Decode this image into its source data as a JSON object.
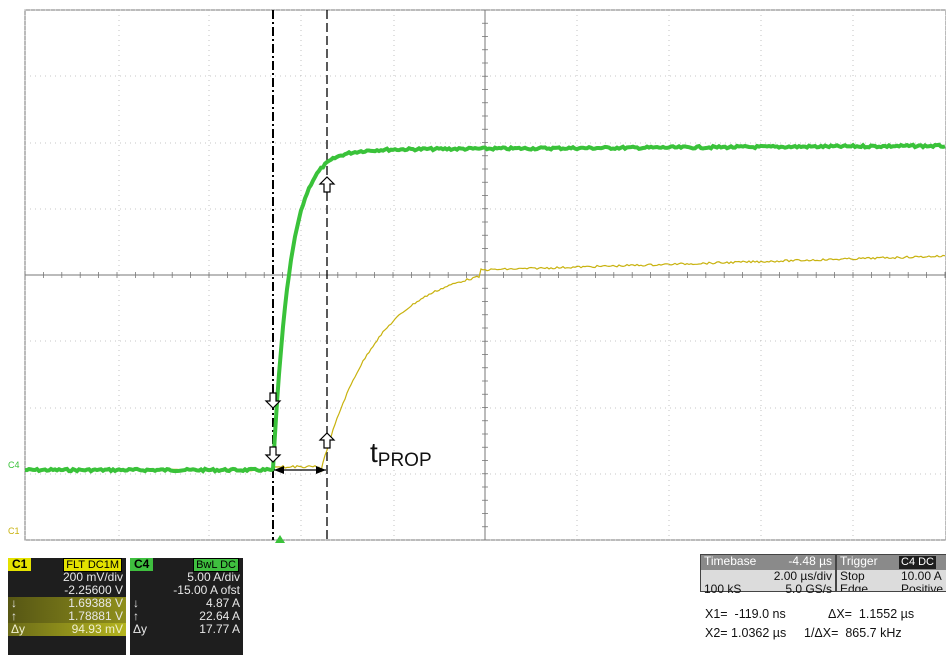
{
  "colors": {
    "ch1": "#c8b20e",
    "ch4": "#3ac23a",
    "grid": "#8a8a8a",
    "cursor": "#000000"
  },
  "annotation": {
    "label_main": "t",
    "label_sub": "PROP"
  },
  "markers": {
    "c4_left": "C4",
    "c1_left": "C1"
  },
  "ch1_panel": {
    "name": "C1",
    "badges": "FLT DC1M",
    "scale": "200 mV/div",
    "offset": "-2.25600 V",
    "cursor_down": {
      "icon": "↓",
      "value": "1.69388 V"
    },
    "cursor_up": {
      "icon": "↑",
      "value": "1.78881 V"
    },
    "delta": {
      "label": "Δy",
      "value": "94.93 mV"
    }
  },
  "ch4_panel": {
    "name": "C4",
    "badges": "BwL DC",
    "scale": "5.00 A/div",
    "offset": "-15.00 A ofst",
    "cursor_down": {
      "icon": "↓",
      "value": "4.87 A"
    },
    "cursor_up": {
      "icon": "↑",
      "value": "22.64 A"
    },
    "delta": {
      "label": "Δy",
      "value": "17.77 A"
    }
  },
  "timebase": {
    "label": "Timebase",
    "delay": "-4.48 µs",
    "per_div": "2.00 µs/div",
    "samples": "100 kS",
    "rate": "5.0 GS/s"
  },
  "trigger": {
    "label": "Trigger",
    "badge": "C4 DC",
    "mode": "Stop",
    "level": "10.00 A",
    "type": "Edge",
    "slope": "Positive"
  },
  "measurements": {
    "x1": "X1=  -119.0 ns",
    "dx": "ΔX=  1.1552 µs",
    "x2": "X2= 1.0362 µs",
    "inv_dx": "1/ΔX=  865.7 kHz"
  }
}
